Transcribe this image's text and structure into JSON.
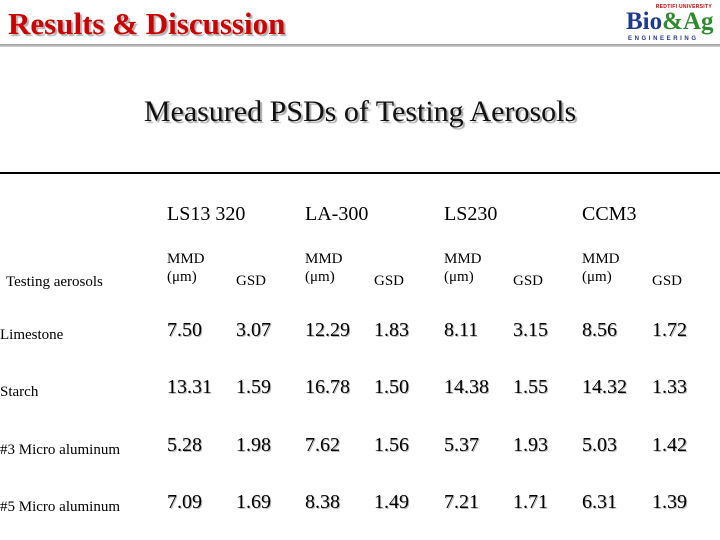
{
  "header": {
    "title": "Results & Discussion",
    "logo": {
      "top_text": "REDTIFI UNIVERSITY",
      "main_part1": "Bio",
      "main_part2": "&Ag",
      "sub_text": "ENGINEERING"
    }
  },
  "subtitle": "Measured PSDs of Testing Aerosols",
  "table": {
    "instruments": [
      "LS13 320",
      "LA-300",
      "LS230",
      "CCM3"
    ],
    "row_header_label": "Testing aerosols",
    "mmd_label_line1": "MMD",
    "mmd_label_line2": "(μm)",
    "gsd_label": "GSD",
    "rows": [
      {
        "label": "Limestone",
        "values": [
          "7.50",
          "3.07",
          "12.29",
          "1.83",
          "8.11",
          "3.15",
          "8.56",
          "1.72"
        ]
      },
      {
        "label": "Starch",
        "values": [
          "13.31",
          "1.59",
          "16.78",
          "1.50",
          "14.38",
          "1.55",
          "14.32",
          "1.33"
        ]
      },
      {
        "label": "#3 Micro aluminum",
        "values": [
          "5.28",
          "1.98",
          "7.62",
          "1.56",
          "5.37",
          "1.93",
          "5.03",
          "1.42"
        ]
      },
      {
        "label": "#5 Micro aluminum",
        "values": [
          "7.09",
          "1.69",
          "8.38",
          "1.49",
          "7.21",
          "1.71",
          "6.31",
          "1.39"
        ]
      }
    ]
  }
}
